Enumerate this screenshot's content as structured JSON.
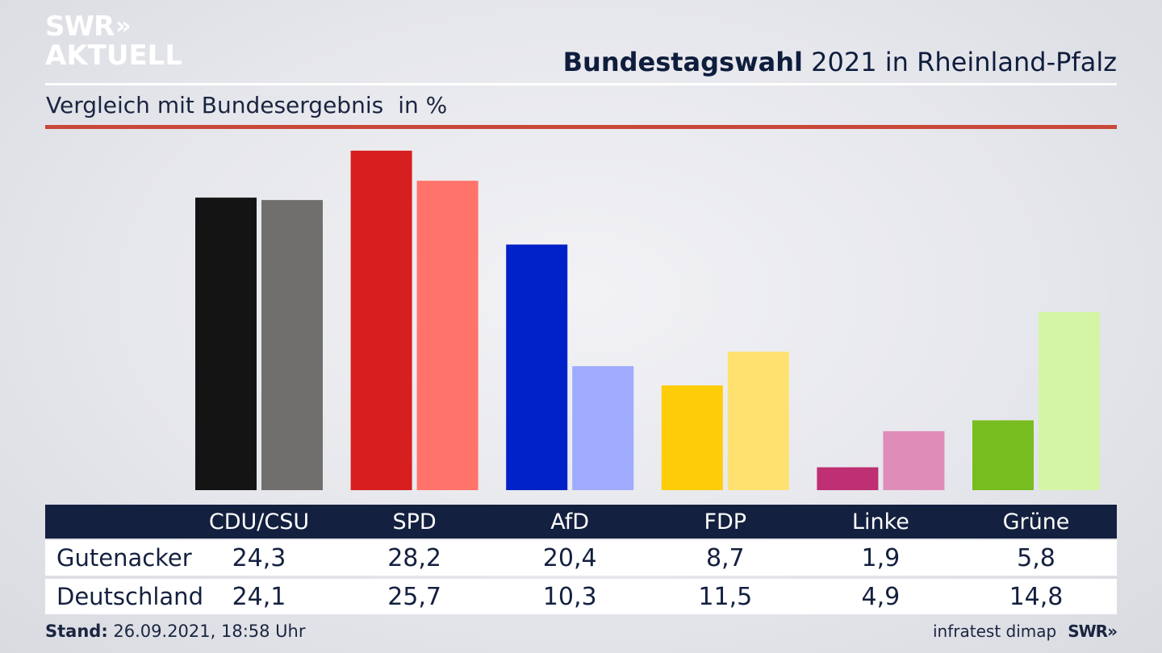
{
  "brand": {
    "logo_line1": "SWR",
    "logo_chevrons": "»",
    "logo_line2": "AKTUELL",
    "footer_logo": "SWR»",
    "source": "infratest dimap"
  },
  "header": {
    "title_bold": "Bundestagswahl",
    "title_rest": " 2021 in Rheinland-Pfalz",
    "subtitle": "Vergleich mit Bundesergebnis",
    "unit": "in %"
  },
  "footer": {
    "stand_label": "Stand:",
    "stand_value": " 26.09.2021, 18:58 Uhr"
  },
  "colors": {
    "header_bar": "#14203f",
    "accent_rule": "#c9483a"
  },
  "chart_data": {
    "type": "bar",
    "categories": [
      "CDU/CSU",
      "SPD",
      "AfD",
      "FDP",
      "Linke",
      "Grüne"
    ],
    "series": [
      {
        "name": "Gutenacker",
        "values": [
          24.3,
          28.2,
          20.4,
          8.7,
          1.9,
          5.8
        ],
        "labels": [
          "24,3",
          "28,2",
          "20,4",
          "8,7",
          "1,9",
          "5,8"
        ],
        "colors": [
          "#141414",
          "#d71f1f",
          "#0021c8",
          "#ffcc0a",
          "#be2f73",
          "#78bd1f"
        ]
      },
      {
        "name": "Deutschland",
        "values": [
          24.1,
          25.7,
          10.3,
          11.5,
          4.9,
          14.8
        ],
        "labels": [
          "24,1",
          "25,7",
          "10,3",
          "11,5",
          "4,9",
          "14,8"
        ],
        "colors": [
          "#706f6e",
          "#ff736b",
          "#9eabff",
          "#ffe170",
          "#df8cb8",
          "#d4f5a5"
        ]
      }
    ],
    "ylim": [
      0,
      30
    ],
    "grid": false,
    "legend": "table-below"
  }
}
